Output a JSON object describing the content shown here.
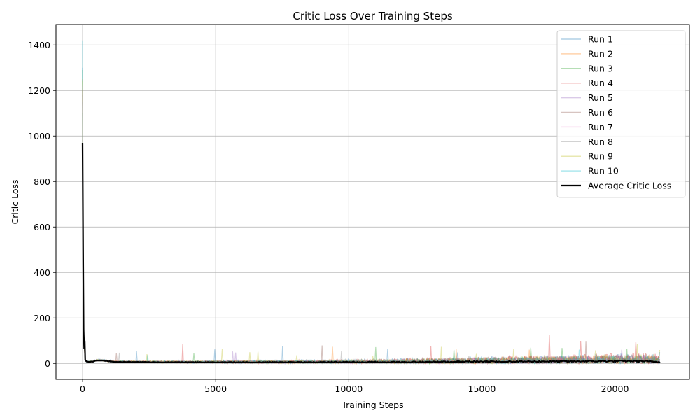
{
  "chart_data": {
    "type": "line",
    "title": "Critic Loss Over Training Steps",
    "xlabel": "Training Steps",
    "ylabel": "Critic Loss",
    "xlim": [
      -1000,
      22800
    ],
    "ylim": [
      -70,
      1490
    ],
    "xticks": [
      0,
      5000,
      10000,
      15000,
      20000
    ],
    "yticks": [
      0,
      200,
      400,
      600,
      800,
      1000,
      1200,
      1400
    ],
    "grid": true,
    "legend_position": "top-right",
    "max_step": 21700,
    "series": [
      {
        "name": "Run 1",
        "color": "#1f77b4",
        "peak": 1300,
        "noise_amp": 22,
        "late_amp": 40
      },
      {
        "name": "Run 2",
        "color": "#ff7f0e",
        "peak": 1250,
        "noise_amp": 18,
        "late_amp": 38
      },
      {
        "name": "Run 3",
        "color": "#2ca02c",
        "peak": 1290,
        "noise_amp": 16,
        "late_amp": 36
      },
      {
        "name": "Run 4",
        "color": "#d62728",
        "peak": 1200,
        "noise_amp": 20,
        "late_amp": 55
      },
      {
        "name": "Run 5",
        "color": "#9467bd",
        "peak": 1150,
        "noise_amp": 15,
        "late_amp": 35
      },
      {
        "name": "Run 6",
        "color": "#8c564b",
        "peak": 1180,
        "noise_amp": 17,
        "late_amp": 45
      },
      {
        "name": "Run 7",
        "color": "#e377c2",
        "peak": 1220,
        "noise_amp": 16,
        "late_amp": 40
      },
      {
        "name": "Run 8",
        "color": "#7f7f7f",
        "peak": 1100,
        "noise_amp": 15,
        "late_amp": 35
      },
      {
        "name": "Run 9",
        "color": "#bcbd22",
        "peak": 1240,
        "noise_amp": 18,
        "late_amp": 38
      },
      {
        "name": "Run 10",
        "color": "#17becf",
        "peak": 1420,
        "noise_amp": 16,
        "late_amp": 35
      }
    ],
    "average": {
      "name": "Average Critic Loss",
      "color": "#000000",
      "x": [
        0,
        20,
        40,
        60,
        80,
        100,
        150,
        200,
        300,
        400,
        500,
        600,
        700,
        800,
        900,
        1000,
        1200,
        1500,
        2000,
        3000,
        5000,
        8000,
        10000,
        12000,
        14000,
        15000,
        16000,
        18000,
        20000,
        21000,
        21700
      ],
      "y": [
        970,
        500,
        150,
        65,
        100,
        15,
        8,
        7,
        7,
        8,
        12,
        13,
        13,
        12,
        11,
        9,
        7,
        6,
        6,
        5,
        5,
        5,
        6,
        6,
        7,
        8,
        8,
        9,
        10,
        10,
        6
      ]
    }
  }
}
